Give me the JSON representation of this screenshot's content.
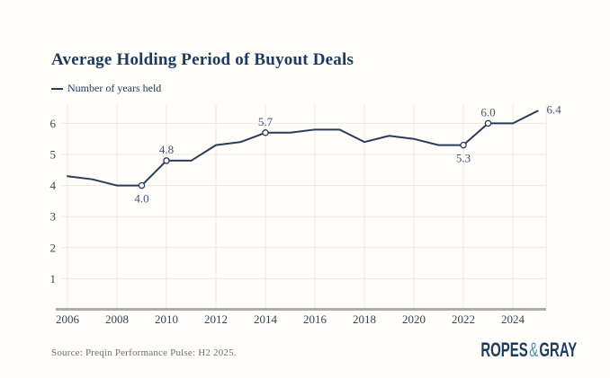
{
  "header": {
    "title": "Average Holding Period of Buyout Deals"
  },
  "legend": {
    "label": "Number of years held"
  },
  "chart_data": {
    "type": "line",
    "title": "Average Holding Period of Buyout Deals",
    "series_name": "Number of years held",
    "x": [
      2006,
      2007,
      2008,
      2009,
      2010,
      2011,
      2012,
      2013,
      2014,
      2015,
      2016,
      2017,
      2018,
      2019,
      2020,
      2021,
      2022,
      2023,
      2024,
      2025
    ],
    "values": [
      4.3,
      4.2,
      4.0,
      4.0,
      4.8,
      4.8,
      5.3,
      5.4,
      5.7,
      5.7,
      5.8,
      5.8,
      5.4,
      5.6,
      5.5,
      5.3,
      5.3,
      6.0,
      6.0,
      6.4
    ],
    "x_tick_labels": [
      "2006",
      "2008",
      "2010",
      "2012",
      "2014",
      "2016",
      "2018",
      "2020",
      "2022",
      "2024"
    ],
    "x_tick_years": [
      2006,
      2008,
      2010,
      2012,
      2014,
      2016,
      2018,
      2020,
      2022,
      2024
    ],
    "y_ticks": [
      1,
      2,
      3,
      4,
      5,
      6
    ],
    "ylim": [
      0,
      6.8
    ],
    "xlabel": "",
    "ylabel": "",
    "grid": true,
    "legend_position": "top-left",
    "point_labels": [
      {
        "x": 2009,
        "text": "4.0",
        "pos": "below"
      },
      {
        "x": 2010,
        "text": "4.8",
        "pos": "above"
      },
      {
        "x": 2014,
        "text": "5.7",
        "pos": "above"
      },
      {
        "x": 2022,
        "text": "5.3",
        "pos": "below"
      },
      {
        "x": 2023,
        "text": "6.0",
        "pos": "above"
      },
      {
        "x": 2025,
        "text": "6.4",
        "pos": "right"
      }
    ],
    "colors": {
      "line": "#2c3b57",
      "marker_fill": "#fffefb",
      "grid": "#e9e8e3",
      "axis": "#adadab",
      "point_label": "#45546e",
      "tick_label": "#3a4350"
    }
  },
  "footer": {
    "source": "Source: Preqin Performance Pulse: H2 2025.",
    "logo": {
      "part1": "ROPES",
      "amp": "&",
      "part2": "GRAY"
    }
  }
}
